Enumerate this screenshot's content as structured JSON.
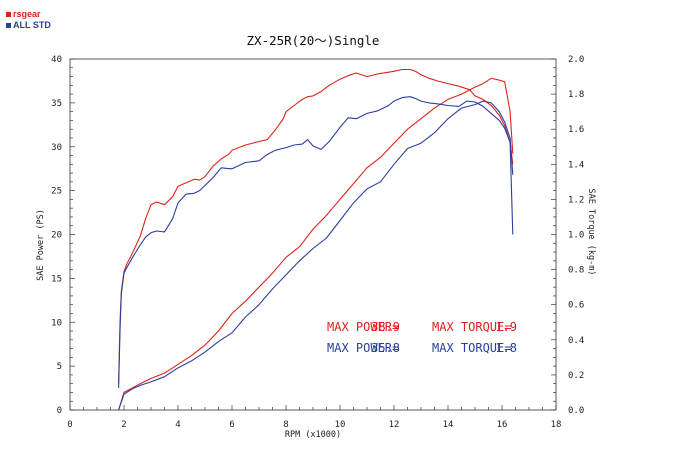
{
  "legend": [
    {
      "label": "rsgear",
      "color": "#e0221b"
    },
    {
      "label": "ALL STD",
      "color": "#2b3f9e"
    }
  ],
  "chart_data": {
    "type": "line",
    "title": "ZX-25R(20～)Single",
    "xlabel": "RPM (x1000)",
    "ylabel_left": "SAE Power (PS)",
    "ylabel_right": "SAE Torque (kg-m)",
    "xlim": [
      0,
      18
    ],
    "ylim_left": [
      0,
      40
    ],
    "ylim_right": [
      0,
      2.0
    ],
    "x_ticks": [
      "0",
      "2",
      "4",
      "6",
      "8",
      "10",
      "12",
      "14",
      "16",
      "18"
    ],
    "y_left_ticks": [
      "0",
      "5",
      "10",
      "15",
      "20",
      "25",
      "30",
      "35",
      "40"
    ],
    "y_right_ticks": [
      "0.0",
      "0.2",
      "0.4",
      "0.6",
      "0.8",
      "1.0",
      "1.2",
      "1.4",
      "1.6",
      "1.8",
      "2.0"
    ],
    "grid": false,
    "series": [
      {
        "name": "rsgear",
        "kind": "power",
        "axis": "left",
        "color": "#e0221b",
        "x": [
          1.8,
          1.85,
          1.9,
          2.0,
          2.1,
          2.3,
          2.6,
          2.8,
          3.0,
          3.2,
          3.5,
          3.8,
          4.0,
          4.3,
          4.6,
          4.8,
          5.0,
          5.3,
          5.6,
          5.9,
          6.0,
          6.5,
          7.0,
          7.3,
          7.6,
          7.9,
          8.0,
          8.3,
          8.6,
          8.8,
          9.0,
          9.3,
          9.6,
          10.0,
          10.3,
          10.6,
          11.0,
          11.4,
          11.8,
          12.0,
          12.3,
          12.6,
          12.8,
          13.0,
          13.3,
          13.6,
          14.0,
          14.4,
          14.8,
          15.0,
          15.3,
          15.6,
          15.9,
          16.1,
          16.3,
          16.4
        ],
        "y": [
          3.0,
          10.0,
          13.5,
          15.8,
          16.6,
          17.8,
          19.8,
          21.8,
          23.4,
          23.7,
          23.4,
          24.3,
          25.5,
          25.9,
          26.3,
          26.2,
          26.6,
          27.8,
          28.6,
          29.2,
          29.6,
          30.2,
          30.6,
          30.8,
          31.9,
          33.2,
          34.0,
          34.7,
          35.4,
          35.7,
          35.8,
          36.3,
          37.0,
          37.7,
          38.1,
          38.4,
          38.0,
          38.3,
          38.5,
          38.6,
          38.8,
          38.8,
          38.6,
          38.2,
          37.8,
          37.5,
          37.2,
          36.9,
          36.5,
          35.8,
          35.4,
          34.7,
          33.6,
          32.4,
          30.5,
          28.0
        ]
      },
      {
        "name": "rsgear",
        "kind": "torque",
        "axis": "right",
        "color": "#e0221b",
        "x": [
          1.8,
          2.0,
          2.3,
          2.6,
          3.0,
          3.5,
          4.0,
          4.5,
          5.0,
          5.5,
          6.0,
          6.5,
          7.0,
          7.5,
          8.0,
          8.5,
          9.0,
          9.5,
          10.0,
          10.5,
          11.0,
          11.5,
          12.0,
          12.5,
          13.0,
          13.5,
          14.0,
          14.5,
          15.0,
          15.3,
          15.6,
          15.9,
          16.1,
          16.3,
          16.4
        ],
        "y": [
          0.0,
          0.1,
          0.125,
          0.15,
          0.18,
          0.21,
          0.26,
          0.31,
          0.37,
          0.45,
          0.55,
          0.62,
          0.7,
          0.78,
          0.87,
          0.93,
          1.03,
          1.11,
          1.2,
          1.29,
          1.38,
          1.44,
          1.52,
          1.6,
          1.66,
          1.72,
          1.77,
          1.8,
          1.84,
          1.86,
          1.89,
          1.88,
          1.87,
          1.7,
          1.46
        ]
      },
      {
        "name": "ALL STD",
        "kind": "power",
        "axis": "left",
        "color": "#2b3f9e",
        "x": [
          1.8,
          1.85,
          1.9,
          2.0,
          2.1,
          2.3,
          2.6,
          2.8,
          3.0,
          3.2,
          3.5,
          3.8,
          4.0,
          4.3,
          4.6,
          4.8,
          5.0,
          5.3,
          5.6,
          5.9,
          6.0,
          6.5,
          7.0,
          7.3,
          7.6,
          8.0,
          8.3,
          8.6,
          8.8,
          9.0,
          9.3,
          9.6,
          10.0,
          10.3,
          10.6,
          11.0,
          11.4,
          11.8,
          12.0,
          12.3,
          12.6,
          12.8,
          13.0,
          13.3,
          13.6,
          14.0,
          14.4,
          14.7,
          15.0,
          15.3,
          15.6,
          15.9,
          16.1,
          16.3,
          16.4
        ],
        "y": [
          2.5,
          9.0,
          13.2,
          15.6,
          16.2,
          17.3,
          18.8,
          19.7,
          20.2,
          20.4,
          20.3,
          21.8,
          23.6,
          24.6,
          24.7,
          25.0,
          25.6,
          26.5,
          27.6,
          27.5,
          27.5,
          28.2,
          28.4,
          29.1,
          29.6,
          29.9,
          30.2,
          30.3,
          30.8,
          30.1,
          29.7,
          30.6,
          32.2,
          33.3,
          33.2,
          33.8,
          34.1,
          34.7,
          35.2,
          35.6,
          35.7,
          35.5,
          35.2,
          35.0,
          34.9,
          34.7,
          34.6,
          35.2,
          35.1,
          34.6,
          33.8,
          33.0,
          32.1,
          30.5,
          20.0
        ]
      },
      {
        "name": "ALL STD",
        "kind": "torque",
        "axis": "right",
        "color": "#2b3f9e",
        "x": [
          1.8,
          2.0,
          2.3,
          2.6,
          3.0,
          3.5,
          4.0,
          4.5,
          5.0,
          5.5,
          6.0,
          6.5,
          7.0,
          7.5,
          8.0,
          8.5,
          9.0,
          9.5,
          10.0,
          10.5,
          11.0,
          11.5,
          12.0,
          12.5,
          13.0,
          13.5,
          14.0,
          14.5,
          15.0,
          15.3,
          15.6,
          15.9,
          16.1,
          16.3,
          16.4
        ],
        "y": [
          0.0,
          0.09,
          0.12,
          0.14,
          0.16,
          0.19,
          0.24,
          0.28,
          0.33,
          0.39,
          0.44,
          0.53,
          0.6,
          0.69,
          0.77,
          0.85,
          0.92,
          0.98,
          1.08,
          1.18,
          1.26,
          1.3,
          1.4,
          1.49,
          1.52,
          1.58,
          1.66,
          1.72,
          1.74,
          1.76,
          1.75,
          1.7,
          1.64,
          1.55,
          1.34
        ]
      }
    ],
    "annotations": [
      {
        "label": "MAX POWER=",
        "value": "38.9",
        "color": "#e0221b"
      },
      {
        "label": "MAX TORQUE=",
        "value": "1.9",
        "color": "#e0221b"
      },
      {
        "label": "MAX POWER=",
        "value": "35.8",
        "color": "#2b3f9e"
      },
      {
        "label": "MAX TORQUE=",
        "value": "1.8",
        "color": "#2b3f9e"
      }
    ]
  }
}
